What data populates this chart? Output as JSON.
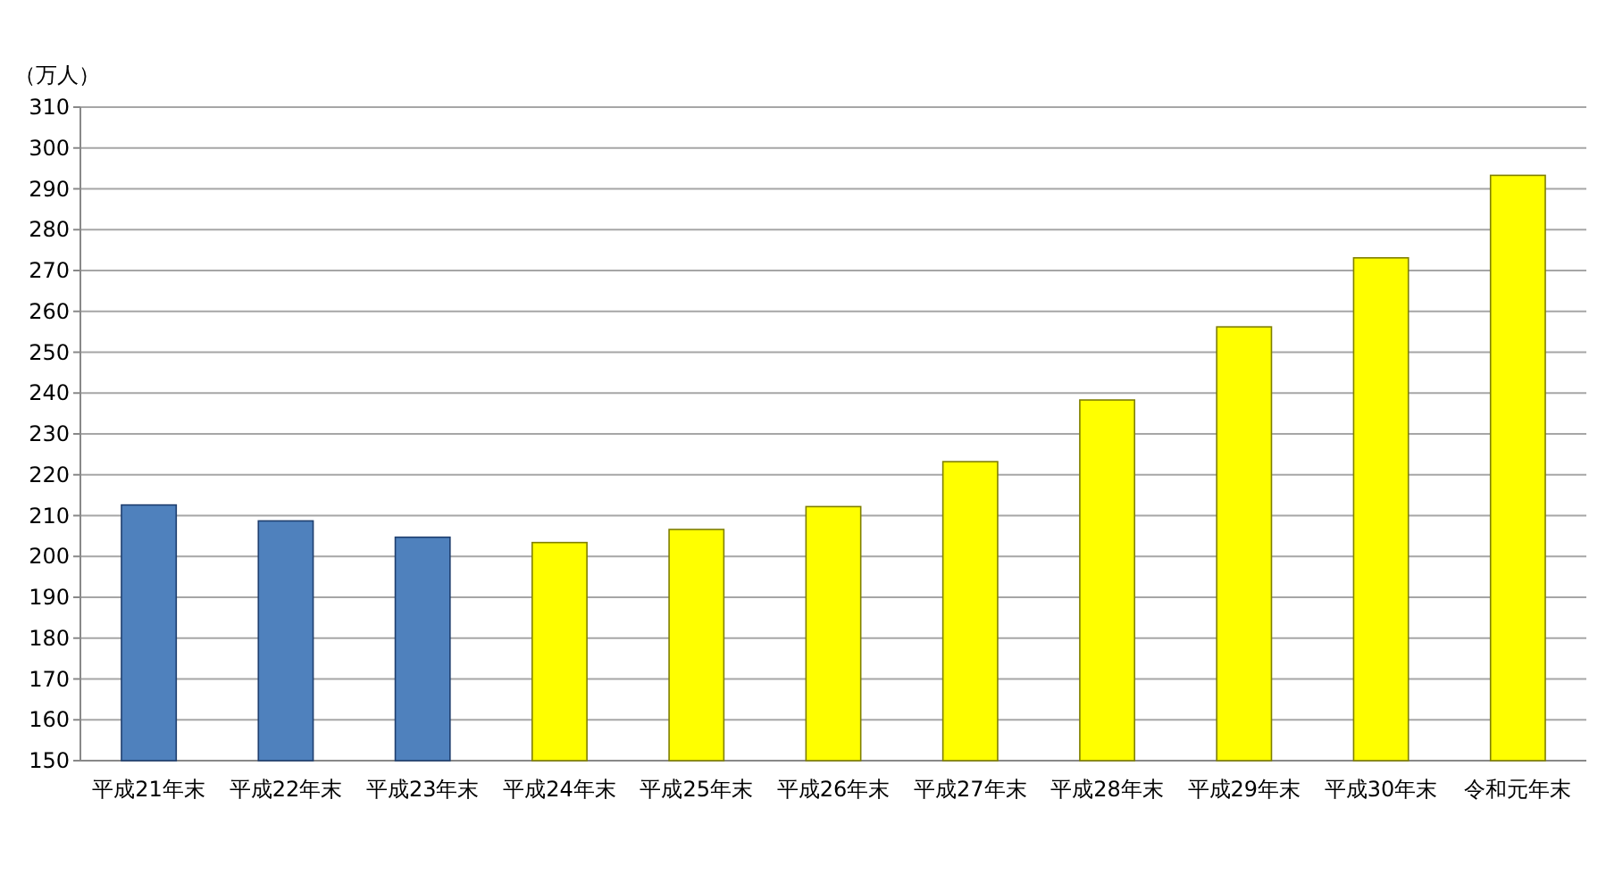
{
  "chart_data": {
    "type": "bar",
    "ylabel": "（万人）",
    "categories": [
      "平成21年末",
      "平成22年末",
      "平成23年末",
      "平成24年末",
      "平成25年末",
      "平成26年末",
      "平成27年末",
      "平成28年末",
      "平成29年末",
      "平成30年末",
      "令和元年末"
    ],
    "values": [
      212.6,
      208.7,
      204.7,
      203.4,
      206.6,
      212.2,
      223.2,
      238.3,
      256.2,
      273.1,
      293.3
    ],
    "colors": [
      "#4f81bd",
      "#4f81bd",
      "#4f81bd",
      "#ffff00",
      "#ffff00",
      "#ffff00",
      "#ffff00",
      "#ffff00",
      "#ffff00",
      "#ffff00",
      "#ffff00"
    ],
    "ylim": [
      150,
      310
    ],
    "yticks": [
      150,
      160,
      170,
      180,
      190,
      200,
      210,
      220,
      230,
      240,
      250,
      260,
      270,
      280,
      290,
      300,
      310
    ],
    "grid": "y"
  }
}
